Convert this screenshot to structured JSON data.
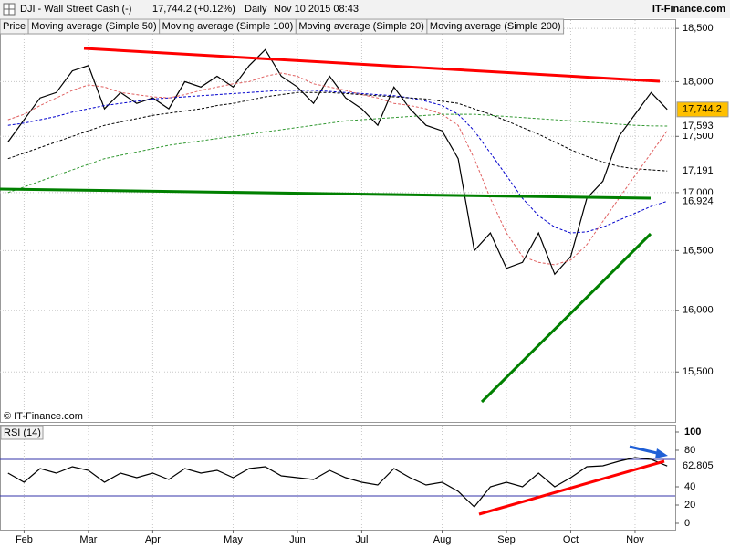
{
  "header": {
    "symbol": "DJI - Wall Street Cash (-)",
    "quote": "17,744.2 (+0.12%)",
    "period": "Daily",
    "timestamp": "Nov 10 2015 08:43",
    "brand": "IT-Finance.com"
  },
  "chart_data": {
    "type": "line",
    "copyright": "© IT-Finance.com",
    "rsi_title": "RSI (14)",
    "log_scale": true,
    "grid": true,
    "legend": "top-left",
    "categories": [
      null,
      "Feb",
      null,
      null,
      null,
      "Mar",
      null,
      null,
      null,
      "Apr",
      null,
      null,
      null,
      null,
      "May",
      null,
      null,
      null,
      "Jun",
      null,
      null,
      null,
      "Jul",
      null,
      null,
      null,
      null,
      "Aug",
      null,
      null,
      null,
      "Sep",
      null,
      null,
      null,
      "Oct",
      null,
      null,
      null,
      "Nov",
      null,
      null
    ],
    "ylim": [
      15120,
      18580
    ],
    "yticks": [
      {
        "value": 15500,
        "label": "15,500"
      },
      {
        "value": 16000,
        "label": "16,000"
      },
      {
        "value": 16500,
        "label": "16,500"
      },
      {
        "value": 17000,
        "label": "17,000"
      },
      {
        "value": 17500,
        "label": "17,500"
      },
      {
        "value": 18000,
        "label": "18,000"
      },
      {
        "value": 18500,
        "label": "18,500"
      }
    ],
    "y2lim": [
      -7,
      107
    ],
    "y2ticks": [
      0,
      20,
      40,
      80,
      100
    ],
    "y2_levels": [
      30,
      70
    ],
    "series": [
      {
        "name": "Price",
        "color": "#000000",
        "label_background": "#ffc000",
        "last_label": "17,744.2",
        "values": [
          17450,
          17650,
          17850,
          17900,
          18100,
          18150,
          17750,
          17900,
          17800,
          17850,
          17750,
          18000,
          17950,
          18050,
          17950,
          18150,
          18300,
          18050,
          17950,
          17800,
          18050,
          17850,
          17750,
          17600,
          17950,
          17750,
          17600,
          17550,
          17300,
          16500,
          16650,
          16350,
          16400,
          16650,
          16300,
          16450,
          16950,
          17100,
          17500,
          17700,
          17900,
          17744.2
        ]
      },
      {
        "name": "Moving average (Simple 50)",
        "color": "#0000cc",
        "last_label": "16,924",
        "values": [
          17600,
          17620,
          17650,
          17680,
          17720,
          17750,
          17780,
          17800,
          17820,
          17840,
          17850,
          17860,
          17870,
          17880,
          17890,
          17900,
          17910,
          17920,
          17920,
          17920,
          17910,
          17900,
          17890,
          17880,
          17870,
          17850,
          17820,
          17780,
          17700,
          17550,
          17350,
          17150,
          16950,
          16800,
          16700,
          16650,
          16660,
          16700,
          16760,
          16820,
          16880,
          16924
        ]
      },
      {
        "name": "Moving average (Simple 100)",
        "color": "#000000",
        "last_label": "17,191",
        "values": [
          17300,
          17350,
          17400,
          17450,
          17500,
          17550,
          17600,
          17630,
          17660,
          17690,
          17710,
          17730,
          17750,
          17780,
          17800,
          17830,
          17860,
          17880,
          17900,
          17900,
          17900,
          17890,
          17880,
          17870,
          17860,
          17850,
          17840,
          17820,
          17800,
          17750,
          17700,
          17640,
          17580,
          17520,
          17450,
          17380,
          17320,
          17270,
          17230,
          17210,
          17200,
          17191
        ]
      },
      {
        "name": "Moving average (Simple 20)",
        "color": "#e06060",
        "last_label": null,
        "values": [
          17650,
          17700,
          17780,
          17850,
          17920,
          17970,
          17950,
          17900,
          17880,
          17860,
          17850,
          17880,
          17920,
          17950,
          17980,
          18000,
          18050,
          18080,
          18050,
          17980,
          17950,
          17920,
          17880,
          17850,
          17800,
          17780,
          17750,
          17700,
          17600,
          17300,
          16950,
          16650,
          16450,
          16400,
          16380,
          16420,
          16550,
          16750,
          16950,
          17150,
          17350,
          17550
        ]
      },
      {
        "name": "Moving average (Simple 200)",
        "color": "#339933",
        "last_label": "17,593",
        "values": [
          17000,
          17050,
          17100,
          17150,
          17200,
          17250,
          17300,
          17330,
          17360,
          17390,
          17420,
          17440,
          17460,
          17480,
          17500,
          17520,
          17540,
          17560,
          17580,
          17600,
          17620,
          17640,
          17650,
          17660,
          17670,
          17680,
          17690,
          17700,
          17700,
          17700,
          17690,
          17680,
          17670,
          17660,
          17650,
          17640,
          17630,
          17620,
          17610,
          17600,
          17595,
          17593
        ]
      },
      {
        "name": "RSI (14)",
        "axis": "y2",
        "color": "#000000",
        "last_label": "62.805",
        "values": [
          55,
          45,
          60,
          55,
          62,
          58,
          45,
          55,
          50,
          55,
          48,
          60,
          55,
          58,
          50,
          60,
          62,
          52,
          50,
          48,
          58,
          50,
          45,
          42,
          60,
          50,
          42,
          45,
          35,
          18,
          40,
          45,
          40,
          55,
          40,
          50,
          62,
          63,
          68,
          72,
          70,
          62.805
        ]
      }
    ]
  }
}
